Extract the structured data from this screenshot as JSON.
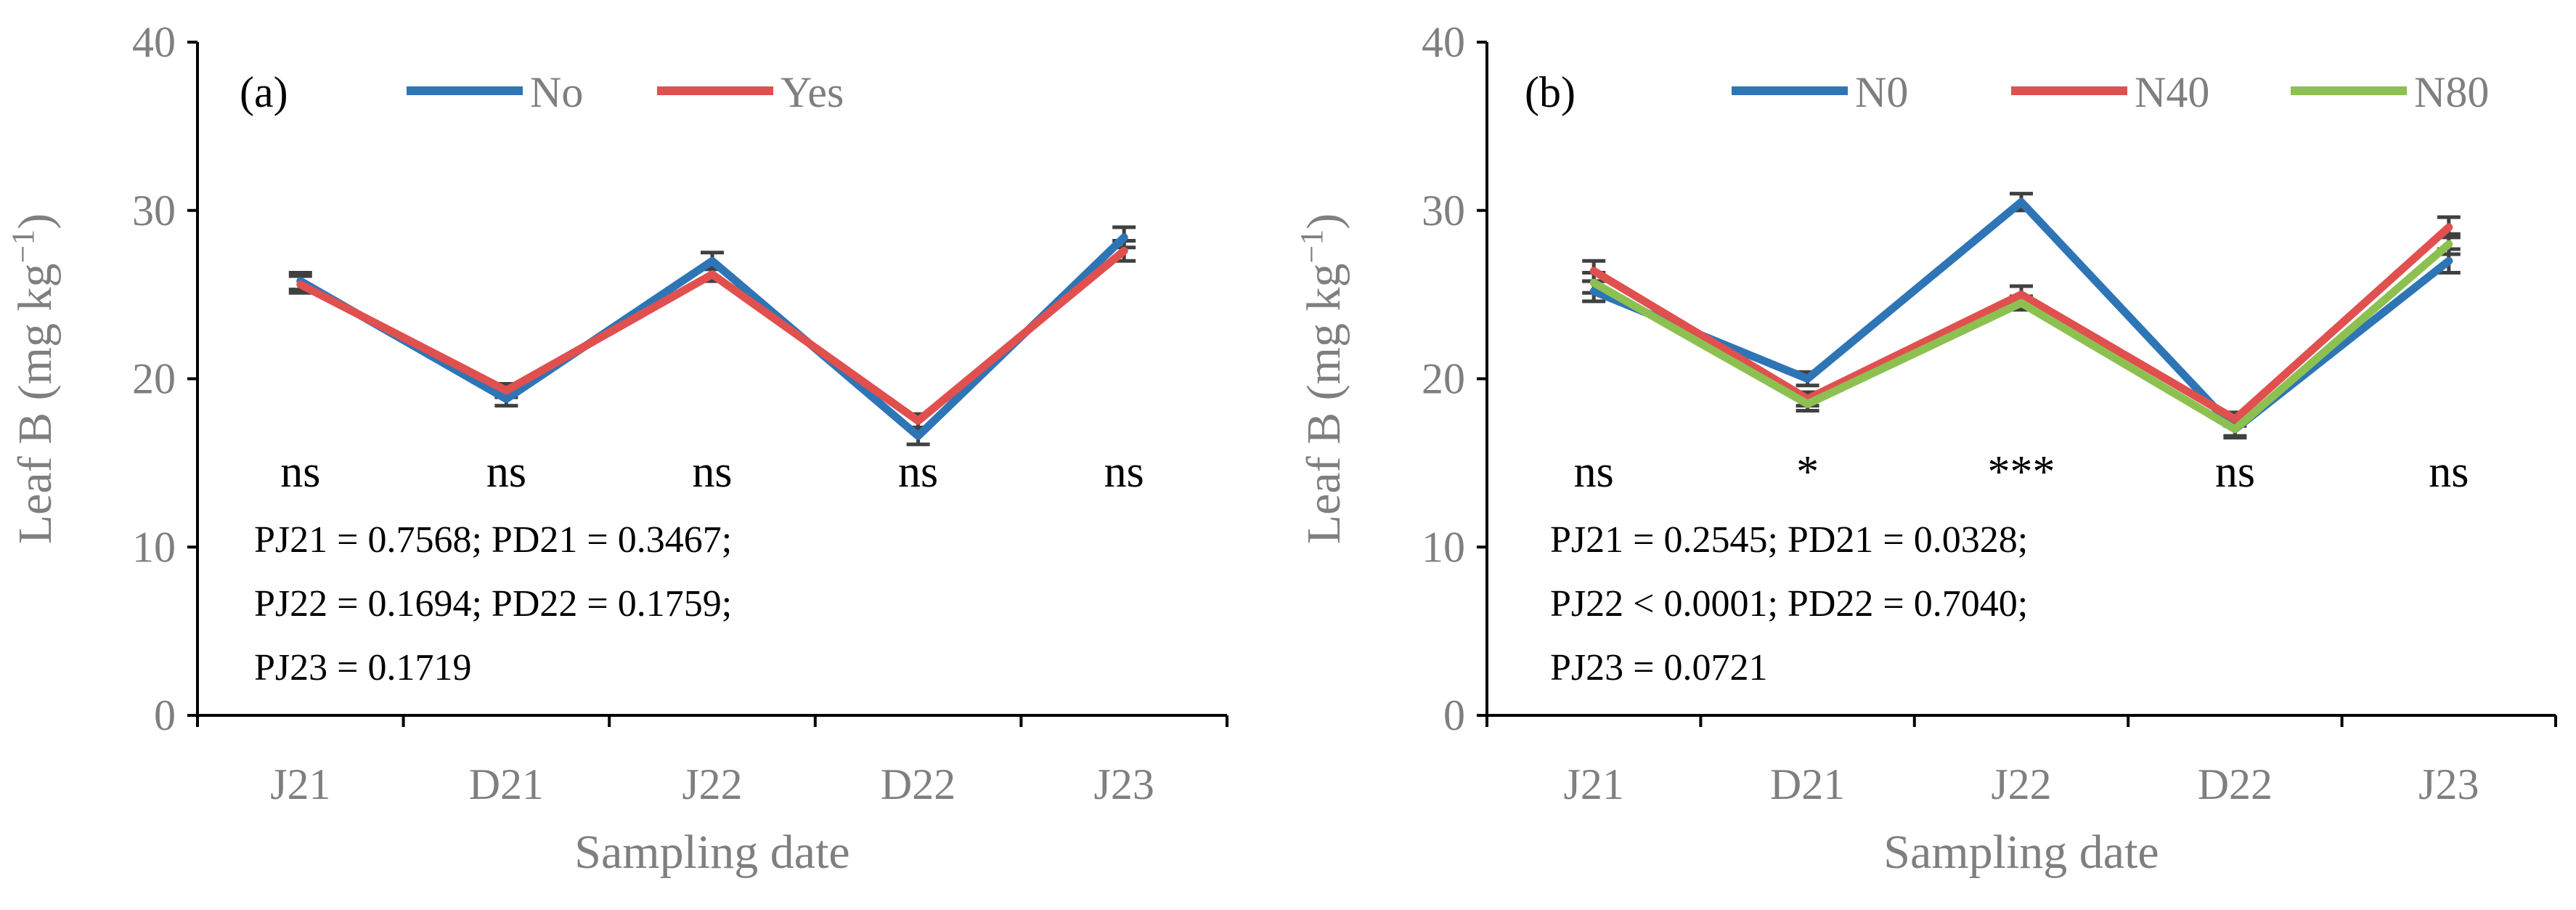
{
  "chart_data": [
    {
      "type": "line",
      "panel_label": "(a)",
      "title": "",
      "xlabel": "Sampling date",
      "ylabel_main": "Leaf B (mg kg",
      "ylabel_sup": "−1",
      "ylabel_close": ")",
      "ylim": [
        0,
        40
      ],
      "yticks": [
        0,
        10,
        20,
        30,
        40
      ],
      "grid": false,
      "legend_position": "top",
      "categories": [
        "J21",
        "D21",
        "J22",
        "D22",
        "J23"
      ],
      "series": [
        {
          "name": "No",
          "color": "#2e75b6",
          "values": [
            25.8,
            18.8,
            27.0,
            16.6,
            28.4
          ],
          "errors": [
            0.5,
            0.4,
            0.5,
            0.5,
            0.6
          ]
        },
        {
          "name": "Yes",
          "color": "#e0504f",
          "values": [
            25.6,
            19.3,
            26.2,
            17.5,
            27.6
          ],
          "errors": [
            0.5,
            0.4,
            0.4,
            0.4,
            0.6
          ]
        }
      ],
      "significance": [
        "ns",
        "ns",
        "ns",
        "ns",
        "ns"
      ],
      "stats_lines": [
        "PJ21 = 0.7568; PD21 = 0.3467;",
        "PJ22 = 0.1694; PD22 = 0.1759;",
        "PJ23 = 0.1719"
      ]
    },
    {
      "type": "line",
      "panel_label": "(b)",
      "title": "",
      "xlabel": "Sampling date",
      "ylabel_main": "Leaf B (mg kg",
      "ylabel_sup": "−1",
      "ylabel_close": ")",
      "ylim": [
        0,
        40
      ],
      "yticks": [
        0,
        10,
        20,
        30,
        40
      ],
      "grid": false,
      "legend_position": "top",
      "categories": [
        "J21",
        "D21",
        "J22",
        "D22",
        "J23"
      ],
      "series": [
        {
          "name": "N0",
          "color": "#2e75b6",
          "values": [
            25.2,
            20.0,
            30.5,
            17.0,
            27.0
          ],
          "errors": [
            0.6,
            0.4,
            0.5,
            0.5,
            0.7
          ]
        },
        {
          "name": "N40",
          "color": "#e0504f",
          "values": [
            26.4,
            18.8,
            25.0,
            17.6,
            29.0
          ],
          "errors": [
            0.6,
            0.4,
            0.5,
            0.4,
            0.6
          ]
        },
        {
          "name": "N80",
          "color": "#8cc152",
          "values": [
            25.7,
            18.5,
            24.5,
            17.0,
            28.0
          ],
          "errors": [
            0.6,
            0.4,
            0.4,
            0.4,
            0.6
          ]
        }
      ],
      "significance": [
        "ns",
        "*",
        "***",
        "ns",
        "ns"
      ],
      "stats_lines": [
        "PJ21 = 0.2545; PD21 = 0.0328;",
        "PJ22 < 0.0001; PD22 = 0.7040;",
        "PJ23 = 0.0721"
      ]
    }
  ]
}
